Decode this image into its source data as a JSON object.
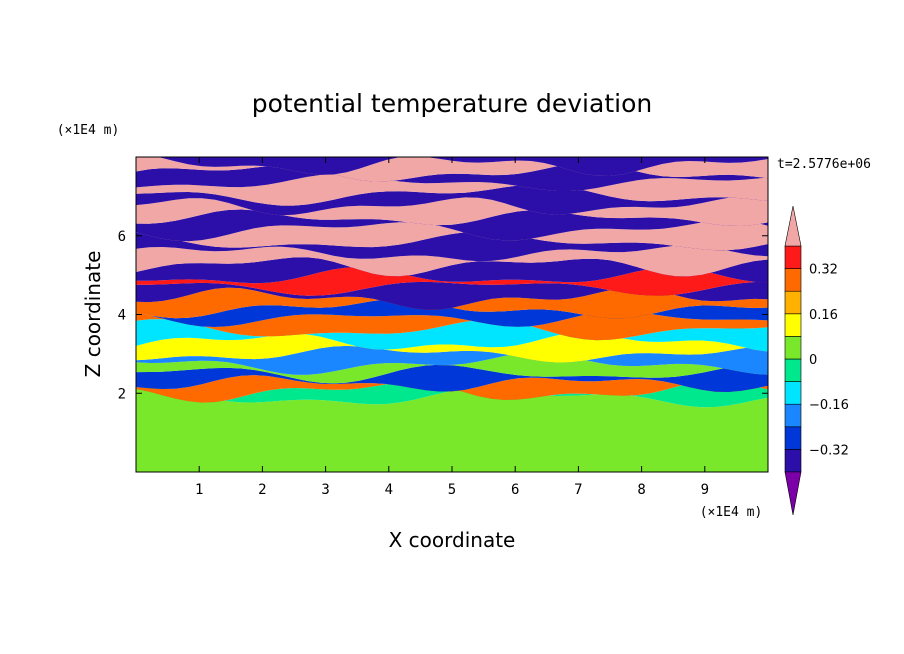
{
  "chart_data": {
    "type": "heatmap",
    "title": "potential temperature deviation",
    "xlabel": "X coordinate",
    "ylabel": "Z coordinate",
    "x_unit": "(×1E4 m)",
    "y_unit": "(×1E4 m)",
    "time_label": "t=2.5776e+06",
    "xlim": [
      0,
      10
    ],
    "ylim": [
      0,
      8
    ],
    "x_ticks": [
      1,
      2,
      3,
      4,
      5,
      6,
      7,
      8,
      9
    ],
    "y_ticks": [
      2,
      4,
      6
    ],
    "colorbar": {
      "min": -0.4,
      "max": 0.4,
      "step": 0.08,
      "tick_values": [
        0.32,
        0.16,
        0,
        -0.16,
        -0.32
      ],
      "tick_labels": [
        "0.32",
        "0.16",
        "0",
        "−0.16",
        "−0.32"
      ],
      "extend": "both",
      "colors": [
        "#7b00a8",
        "#2b0fa8",
        "#0037d8",
        "#1a86ff",
        "#00e5ff",
        "#00e88e",
        "#7ae82a",
        "#ffff00",
        "#ffb000",
        "#ff6a00",
        "#ff1a1a",
        "#f2a7a7"
      ]
    },
    "bands": [
      {
        "z": 0.0,
        "v": 0.05
      },
      {
        "z": 1.9,
        "v": -0.05
      },
      {
        "z": 2.05,
        "v": 0.3
      },
      {
        "z": 2.25,
        "v": -0.25
      },
      {
        "z": 2.5,
        "v": 0.05
      },
      {
        "z": 2.75,
        "v": -0.2
      },
      {
        "z": 3.0,
        "v": 0.1
      },
      {
        "z": 3.3,
        "v": -0.15
      },
      {
        "z": 3.6,
        "v": 0.25
      },
      {
        "z": 3.9,
        "v": -0.3
      },
      {
        "z": 4.15,
        "v": 0.3
      },
      {
        "z": 4.4,
        "v": -0.35
      },
      {
        "z": 4.7,
        "v": 0.38
      },
      {
        "z": 4.95,
        "v": -0.38
      },
      {
        "z": 5.25,
        "v": 0.4
      },
      {
        "z": 5.55,
        "v": -0.4
      },
      {
        "z": 5.85,
        "v": 0.4
      },
      {
        "z": 6.15,
        "v": -0.4
      },
      {
        "z": 6.45,
        "v": 0.4
      },
      {
        "z": 6.75,
        "v": -0.4
      },
      {
        "z": 7.05,
        "v": 0.4
      },
      {
        "z": 7.35,
        "v": -0.4
      },
      {
        "z": 7.6,
        "v": 0.4
      },
      {
        "z": 7.8,
        "v": -0.4
      }
    ]
  }
}
